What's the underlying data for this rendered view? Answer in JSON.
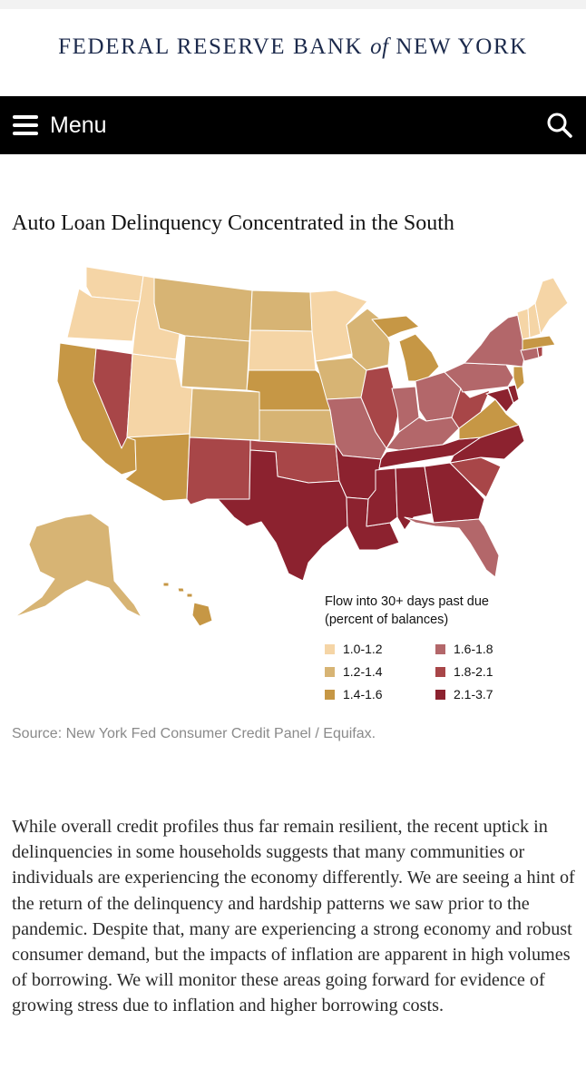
{
  "header": {
    "org_name_part1": "FEDERAL RESERVE BANK",
    "org_name_of": "of",
    "org_name_part2": "NEW YORK"
  },
  "nav": {
    "menu_label": "Menu",
    "menu_icon": "hamburger-icon",
    "search_icon": "search-icon"
  },
  "article": {
    "title": "Auto Loan Delinquency Concentrated in the South",
    "source": "Source: New York Fed Consumer Credit Panel / Equifax.",
    "body": "While overall credit profiles thus far remain resilient, the recent uptick in delinquencies in some households suggests that many communities or individuals are experiencing the economy differently. We are seeing a hint of the return of the delinquency and hardship patterns we saw prior to the pandemic. Despite that, many are experiencing a strong economy and robust consumer demand, but the impacts of inflation are apparent in high volumes of borrowing. We will monitor these areas going forward for evidence of growing stress due to inflation and higher borrowing costs."
  },
  "map": {
    "legend_title_line1": "Flow into 30+ days past due",
    "legend_title_line2": "(percent of balances)",
    "legend": [
      {
        "label": "1.0-1.2",
        "color": "#f5d5a6"
      },
      {
        "label": "1.2-1.4",
        "color": "#d7b474"
      },
      {
        "label": "1.4-1.6",
        "color": "#c69745"
      },
      {
        "label": "1.6-1.8",
        "color": "#b3676a"
      },
      {
        "label": "1.8-2.1",
        "color": "#a84648"
      },
      {
        "label": "2.1-3.7",
        "color": "#8c222f"
      }
    ],
    "state_bins": {
      "WA": "1.0-1.2",
      "OR": "1.0-1.2",
      "ID": "1.0-1.2",
      "UT": "1.0-1.2",
      "SD": "1.0-1.2",
      "MN": "1.0-1.2",
      "VT": "1.0-1.2",
      "NH": "1.0-1.2",
      "ME": "1.0-1.2",
      "MT": "1.2-1.4",
      "WY": "1.2-1.4",
      "CO": "1.2-1.4",
      "ND": "1.2-1.4",
      "KS": "1.2-1.4",
      "IA": "1.2-1.4",
      "WI": "1.2-1.4",
      "AK": "1.2-1.4",
      "CA": "1.4-1.6",
      "AZ": "1.4-1.6",
      "NE": "1.4-1.6",
      "MI": "1.4-1.6",
      "VA": "1.4-1.6",
      "NJ": "1.4-1.6",
      "MA": "1.4-1.6",
      "HI": "1.4-1.6",
      "MO": "1.6-1.8",
      "IN": "1.6-1.8",
      "OH": "1.6-1.8",
      "KY": "1.6-1.8",
      "PA": "1.6-1.8",
      "NY": "1.6-1.8",
      "FL": "1.6-1.8",
      "CT": "1.6-1.8",
      "NV": "1.8-2.1",
      "NM": "1.8-2.1",
      "OK": "1.8-2.1",
      "IL": "1.8-2.1",
      "WV": "1.8-2.1",
      "SC": "1.8-2.1",
      "RI": "1.8-2.1",
      "TX": "2.1-3.7",
      "AR": "2.1-3.7",
      "LA": "2.1-3.7",
      "MS": "2.1-3.7",
      "AL": "2.1-3.7",
      "GA": "2.1-3.7",
      "TN": "2.1-3.7",
      "NC": "2.1-3.7",
      "MD": "2.1-3.7",
      "DE": "2.1-3.7"
    }
  }
}
